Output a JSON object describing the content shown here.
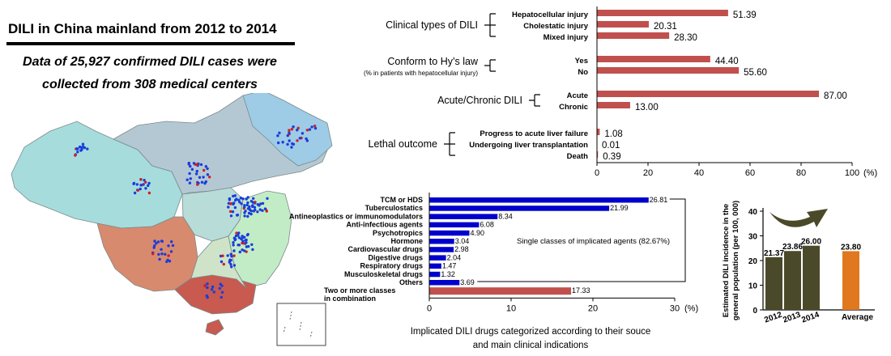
{
  "title": "DILI in China mainland from 2012 to 2014",
  "subtitle_line1": "Data of  25,927 confirmed DILI cases were",
  "subtitle_line2": "collected from 308 medical centers",
  "colors": {
    "bar_red": "#c0504d",
    "bar_blue": "#0000cc",
    "bar_dark": "#4a4a2a",
    "bar_orange": "#e07820"
  },
  "chart_data": [
    {
      "type": "bar",
      "orientation": "horizontal",
      "groups": [
        {
          "name": "Clinical types of DILI",
          "categories": [
            "Hepatocellular injury",
            "Cholestatic injury",
            "Mixed injury"
          ],
          "values": [
            51.39,
            20.31,
            28.3
          ],
          "labels": [
            "51.39",
            "20.31",
            "28.30"
          ]
        },
        {
          "name": "Conform to Hy’s law",
          "note": "(% in patients with hepatocellular injury)",
          "categories": [
            "Yes",
            "No"
          ],
          "values": [
            44.4,
            55.6
          ],
          "labels": [
            "44.40",
            "55.60"
          ]
        },
        {
          "name": "Acute/Chronic DILI",
          "categories": [
            "Acute",
            "Chronic"
          ],
          "values": [
            87.0,
            13.0
          ],
          "labels": [
            "87.00",
            "13.00"
          ]
        },
        {
          "name": "Lethal outcome",
          "categories": [
            "Progress to acute liver failure",
            "Undergoing liver transplantation",
            "Death"
          ],
          "values": [
            1.08,
            0.01,
            0.39
          ],
          "labels": [
            "1.08",
            "0.01",
            "0.39"
          ]
        }
      ],
      "xlim": [
        0,
        100
      ],
      "ticks": [
        "0",
        "20",
        "40",
        "60",
        "80",
        "100"
      ],
      "unit": "(%)"
    },
    {
      "type": "bar",
      "orientation": "horizontal",
      "categories": [
        "TCM or HDS",
        "Tuberculostatics",
        "Antineoplastics or immunomodulators",
        "Anti-infectious agents",
        "Psychotropics",
        "Hormone",
        "Cardiovascular drugs",
        "Digestive drugs",
        "Respiratory drugs",
        "Musculoskeletal drugs",
        "Others",
        "Two or more classes|in combination"
      ],
      "values": [
        26.81,
        21.99,
        8.34,
        6.08,
        4.9,
        3.04,
        2.98,
        2.04,
        1.47,
        1.32,
        3.69,
        17.33
      ],
      "labels": [
        "26.81",
        "21.99",
        "8.34",
        "6.08",
        "4.90",
        "3.04",
        "2.98",
        "2.04",
        "1.47",
        "1.32",
        "3.69",
        "17.33"
      ],
      "bar_colors": [
        "blue",
        "blue",
        "blue",
        "blue",
        "blue",
        "blue",
        "blue",
        "blue",
        "blue",
        "blue",
        "blue",
        "red"
      ],
      "bracket_label": "Single classes of implicated agents (82.67%)",
      "xlim": [
        0,
        30
      ],
      "ticks": [
        "0",
        "10",
        "20",
        "30"
      ],
      "unit": "(%)",
      "caption_line1": "Implicated DILI drugs categorized according to their souce",
      "caption_line2": "and main clinical indications"
    },
    {
      "type": "bar",
      "categories": [
        "2012",
        "2013",
        "2014",
        "Average"
      ],
      "values": [
        21.37,
        23.86,
        26.0,
        23.8
      ],
      "labels": [
        "21.37",
        "23.86",
        "26.00",
        "23.80"
      ],
      "ylim": [
        0,
        40
      ],
      "yticks": [
        "0",
        "10",
        "20",
        "30",
        "40"
      ],
      "ylabel_line1": "Estimated DILI incidence in the",
      "ylabel_line2": "general population (per 100, 000)"
    }
  ]
}
